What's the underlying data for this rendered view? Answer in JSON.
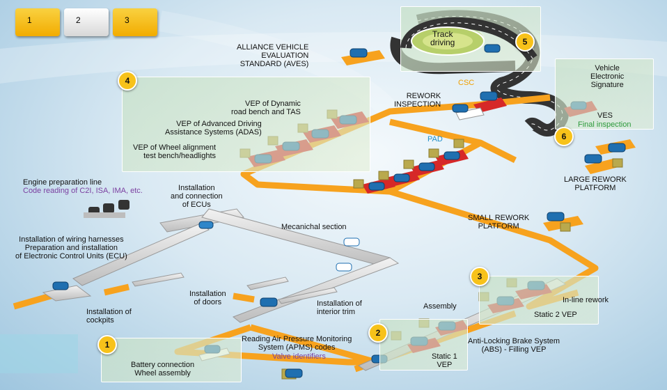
{
  "tabs": [
    {
      "label": "1",
      "active": true
    },
    {
      "label": "2",
      "active": false
    },
    {
      "label": "3",
      "active": true
    }
  ],
  "steps": [
    "1",
    "2",
    "3",
    "4",
    "5",
    "6"
  ],
  "labels": {
    "aves": "ALLIANCE VEHICLE\nEVALUATION\nSTANDARD (AVES)",
    "track": "Track\ndriving",
    "csc": "CSC",
    "rework_inspection": "REWORK\nINSPECTION",
    "pad": "PAD",
    "ves_title": "Vehicle\nElectronic\nSignature",
    "ves": "VES",
    "final_inspection": "Final inspection",
    "vep_dynamic": "VEP of Dynamic\nroad bench and TAS",
    "vep_adas": "VEP of Advanced Driving\nAssistance Systems (ADAS)",
    "vep_wheel": "VEP of Wheel alignment\ntest bench/headlights",
    "large_rework": "LARGE REWORK\nPLATFORM",
    "small_rework": "SMALL REWORK\nPLATFORM",
    "engine_line": "Engine preparation line",
    "engine_codes": "Code reading of C2I, ISA, IMA, etc.",
    "ecus": "Installation\nand connection\nof ECUs",
    "mechanical": "Mecanichal section",
    "wiring": "Installation of wiring harnesses\nPreparation and installation\nof Electronic Control Units (ECU)",
    "cockpits": "Installation of\ncockpits",
    "doors": "Installation\nof doors",
    "interior": "Installation of\ninterior trim",
    "assembly": "Assembly",
    "inline_rework": "In-line rework",
    "static2": "Static 2 VEP",
    "apms": "Reading Air Pressure Monitoring\nSystem (APMS) codes",
    "valve": "Valve identifiers",
    "abs": "Anti-Locking Brake System\n(ABS) - Filling VEP",
    "static1": "Static 1\nVEP",
    "battery": "Battery connection\nWheel assembly"
  },
  "colors": {
    "belt": "#f7a21e",
    "floor": "#dcdcdc",
    "badge": "#f7c21a",
    "car": "#1f6fb0",
    "test_pad": "#d62828"
  }
}
